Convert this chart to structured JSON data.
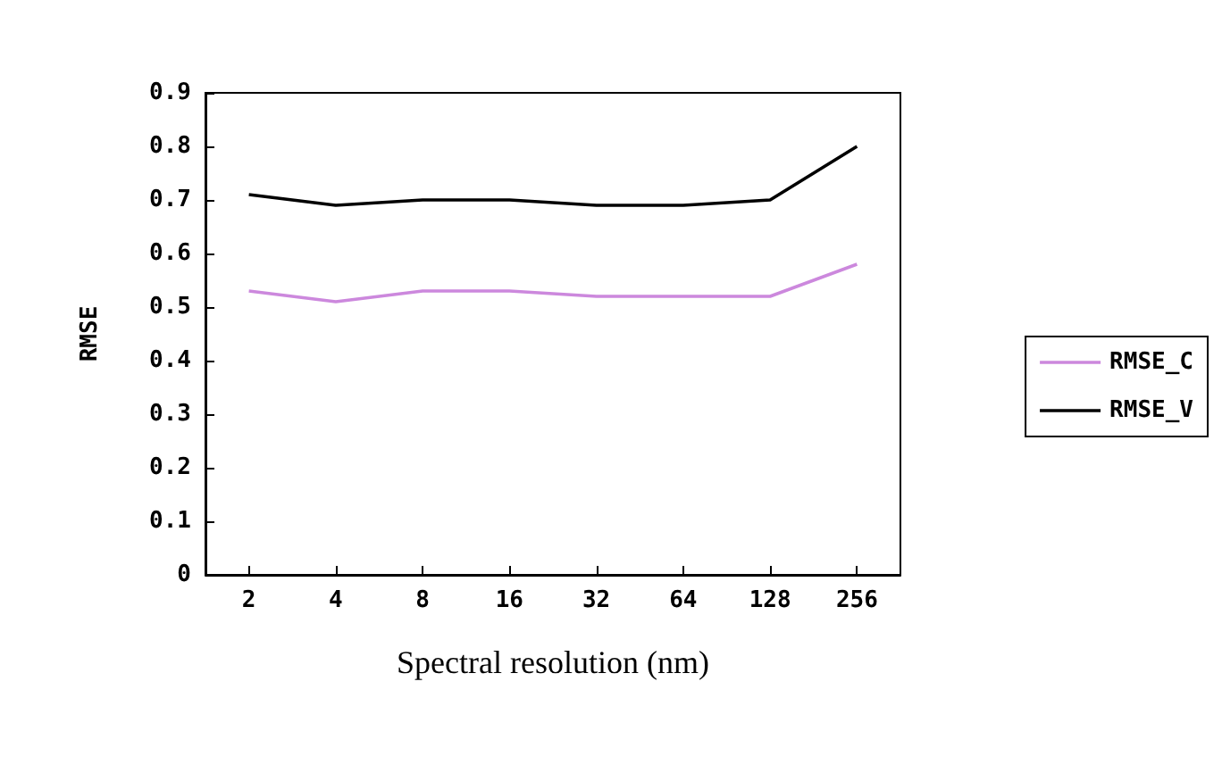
{
  "chart_data": {
    "type": "line",
    "xlabel": "Spectral resolution (nm)",
    "ylabel": "RMSE",
    "categories": [
      "2",
      "4",
      "8",
      "16",
      "32",
      "64",
      "128",
      "256"
    ],
    "series": [
      {
        "name": "RMSE_C",
        "color": "#cc88dd",
        "values": [
          0.53,
          0.51,
          0.53,
          0.53,
          0.52,
          0.52,
          0.52,
          0.58
        ]
      },
      {
        "name": "RMSE_V",
        "color": "#000000",
        "values": [
          0.71,
          0.69,
          0.7,
          0.7,
          0.69,
          0.69,
          0.7,
          0.8
        ]
      }
    ],
    "ylim": [
      0,
      0.9
    ],
    "yticks": [
      0,
      0.1,
      0.2,
      0.3,
      0.4,
      0.5,
      0.6,
      0.7,
      0.8,
      0.9
    ],
    "grid": false,
    "legend": "right",
    "marker": "none"
  }
}
